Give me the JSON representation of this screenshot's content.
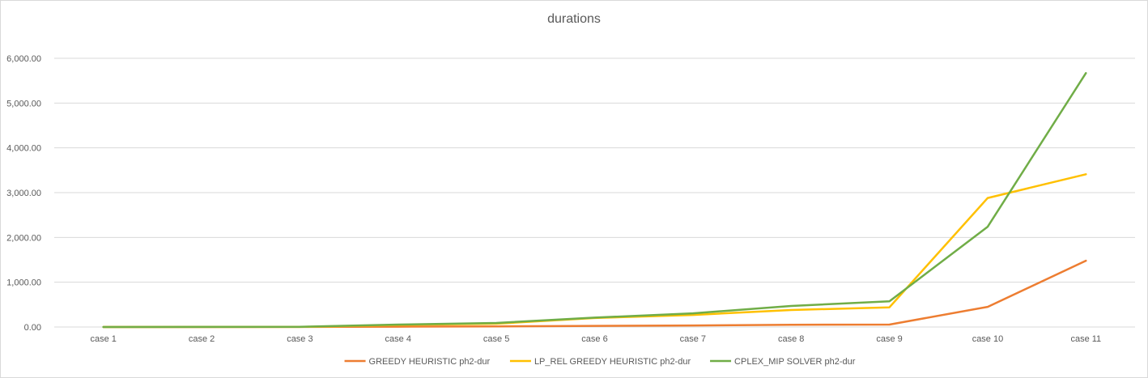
{
  "chart_data": {
    "type": "line",
    "title": "durations",
    "xlabel": "",
    "ylabel": "",
    "categories": [
      "case 1",
      "case 2",
      "case 3",
      "case 4",
      "case 5",
      "case 6",
      "case 7",
      "case 8",
      "case 9",
      "case 10",
      "case 11"
    ],
    "ylim": [
      0,
      6000
    ],
    "yticks": [
      0,
      1000,
      2000,
      3000,
      4000,
      5000,
      6000
    ],
    "ytick_labels": [
      "0.00",
      "1,000.00",
      "2,000.00",
      "3,000.00",
      "4,000.00",
      "5,000.00",
      "6,000.00"
    ],
    "grid": true,
    "legend_position": "bottom",
    "series": [
      {
        "name": "GREEDY HEURISTIC ph2-dur",
        "color": "#ED7D31",
        "values": [
          0,
          0,
          1,
          8,
          15,
          25,
          35,
          50,
          55,
          450,
          1480
        ]
      },
      {
        "name": "LP_REL GREEDY HEURISTIC ph2-dur",
        "color": "#FFC000",
        "values": [
          0,
          1,
          2,
          45,
          75,
          200,
          270,
          380,
          440,
          2880,
          3410
        ]
      },
      {
        "name": "CPLEX_MIP SOLVER ph2-dur",
        "color": "#70AD47",
        "values": [
          0,
          1,
          3,
          55,
          90,
          210,
          305,
          470,
          575,
          2240,
          5670
        ]
      }
    ]
  }
}
